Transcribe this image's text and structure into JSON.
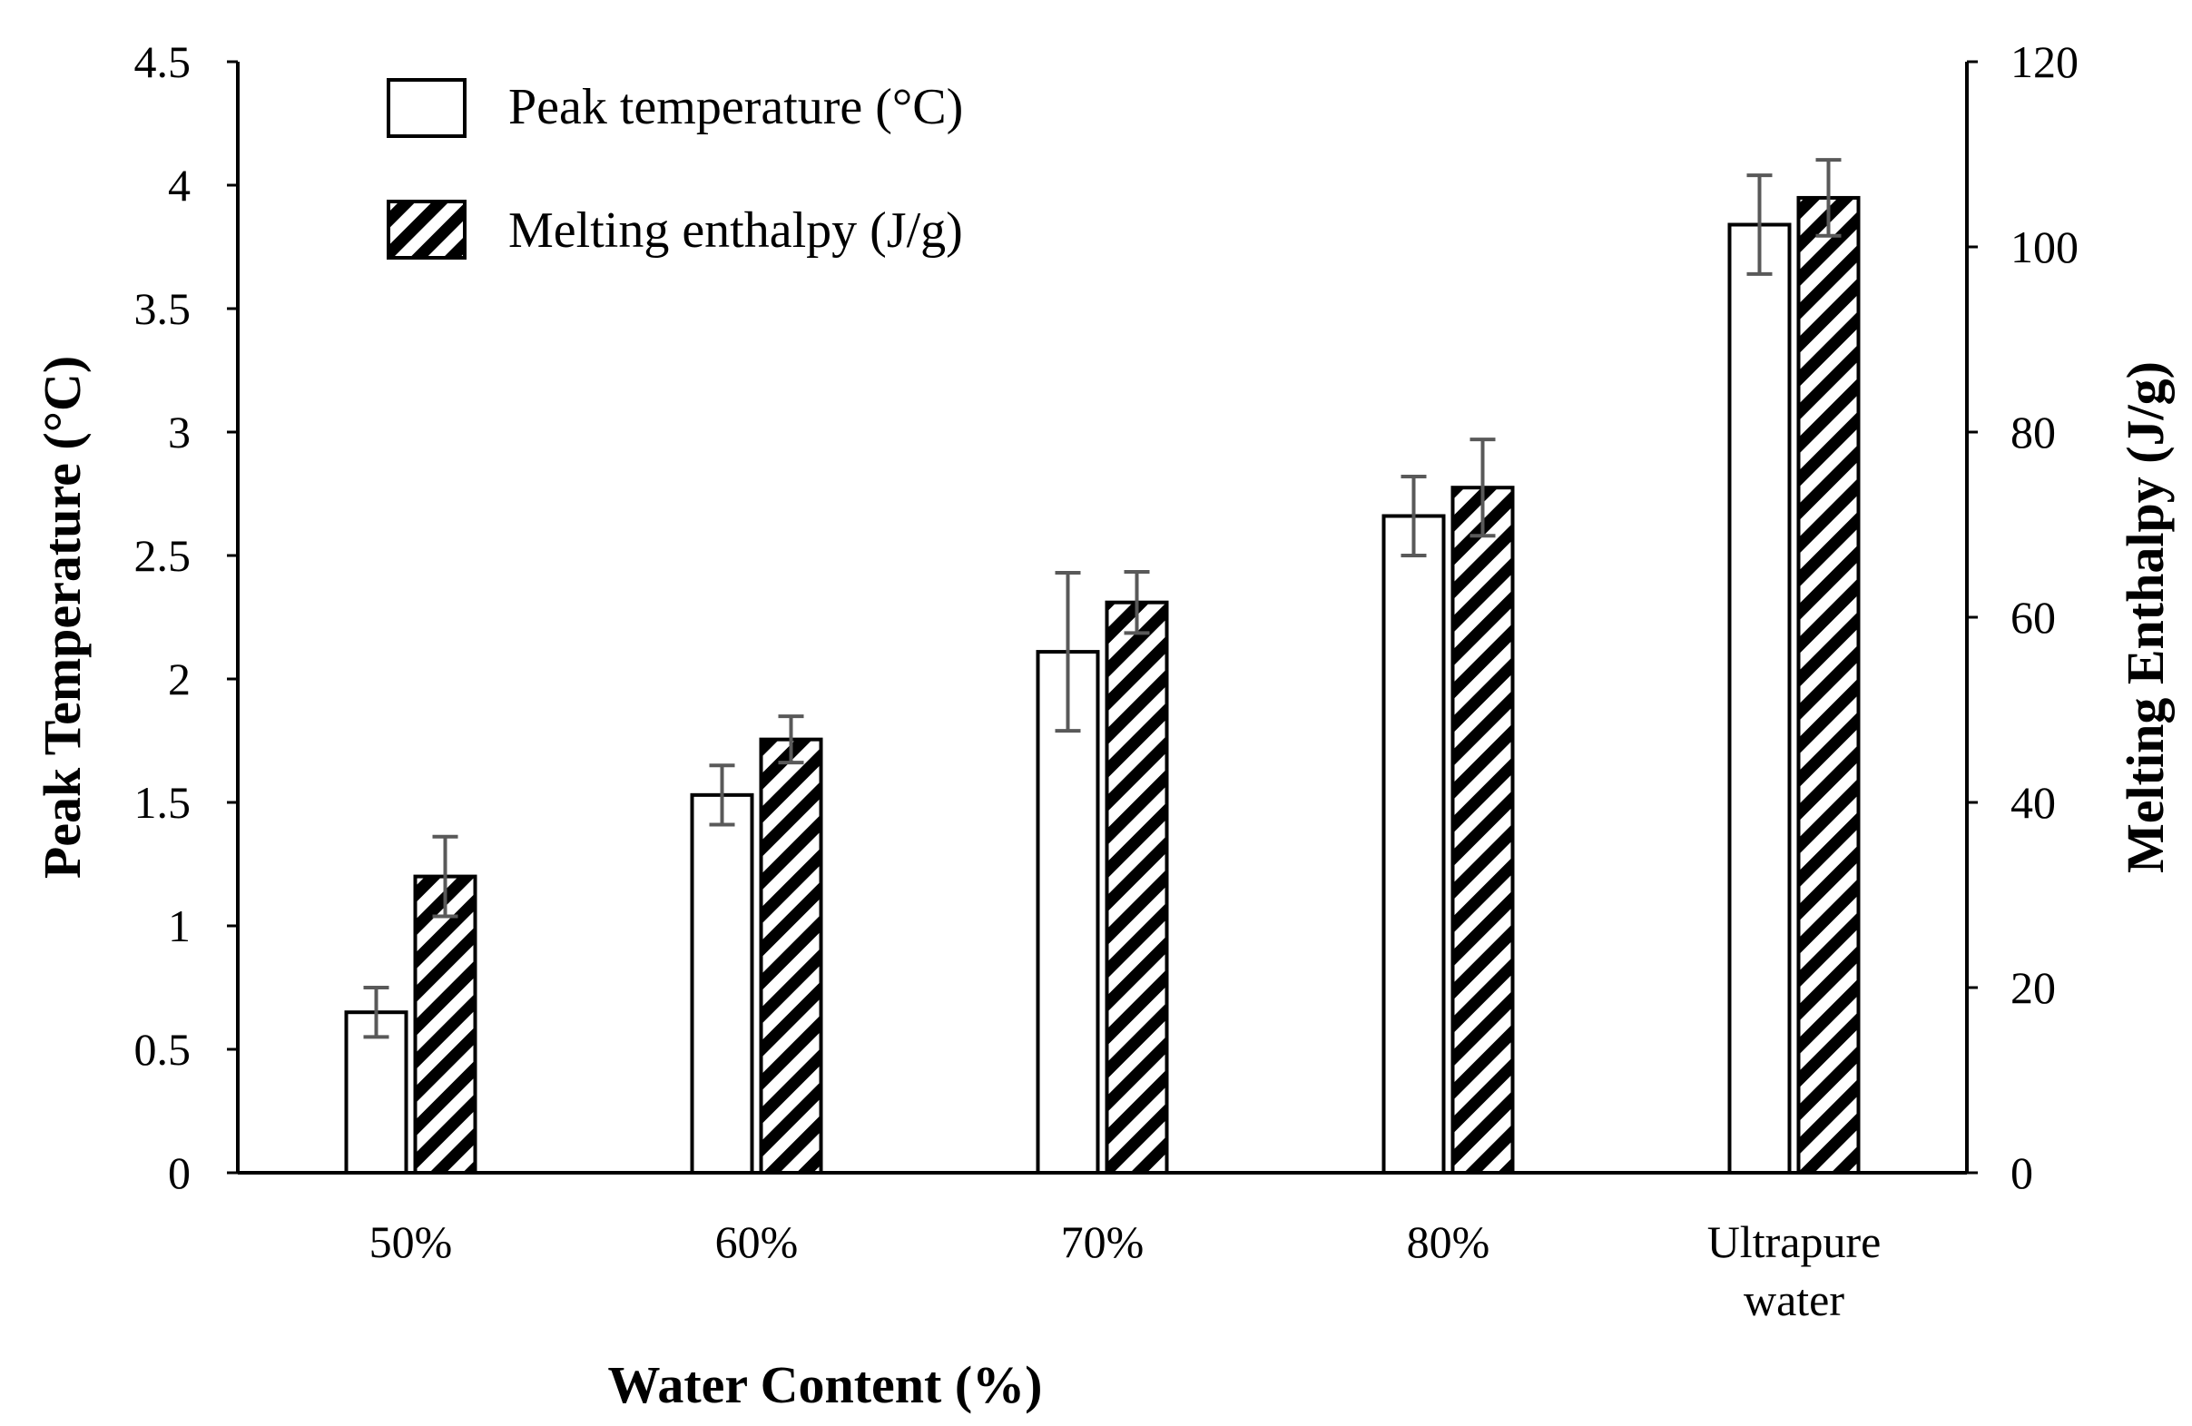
{
  "chart_data": {
    "type": "bar",
    "title": "",
    "xlabel": "Water Content (%)",
    "ylabel_left": "Peak Temperature (°C)",
    "ylabel_right": "Melting Enthalpy (J/g)",
    "categories": [
      [
        "50%"
      ],
      [
        "60%"
      ],
      [
        "70%"
      ],
      [
        "80%"
      ],
      [
        "Ultrapure",
        "water"
      ]
    ],
    "series": [
      {
        "name": "Peak temperature (°C)",
        "axis": "left",
        "pattern": "solid-white",
        "values": [
          0.65,
          1.53,
          2.11,
          2.66,
          3.84
        ],
        "errors": [
          0.1,
          0.12,
          0.32,
          0.16,
          0.2
        ]
      },
      {
        "name": "Melting enthalpy (J/g)",
        "axis": "right",
        "pattern": "diagonal-hatch",
        "values": [
          32,
          46.8,
          61.6,
          74,
          105.3
        ],
        "errors": [
          4.3,
          2.5,
          3.3,
          5.2,
          4.1
        ]
      }
    ],
    "ylim_left": [
      0,
      4.5
    ],
    "yticks_left": [
      "0",
      "0.5",
      "1",
      "1.5",
      "2",
      "2.5",
      "3",
      "3.5",
      "4",
      "4.5"
    ],
    "ylim_right": [
      0,
      120
    ],
    "yticks_right": [
      "0",
      "20",
      "40",
      "60",
      "80",
      "100",
      "120"
    ],
    "grid": false,
    "legend_position": "top-left",
    "colors": {
      "bar_edge": "#000000",
      "bar_fill": "#ffffff",
      "hatch": "#000000",
      "error_bar": "#595959"
    }
  }
}
